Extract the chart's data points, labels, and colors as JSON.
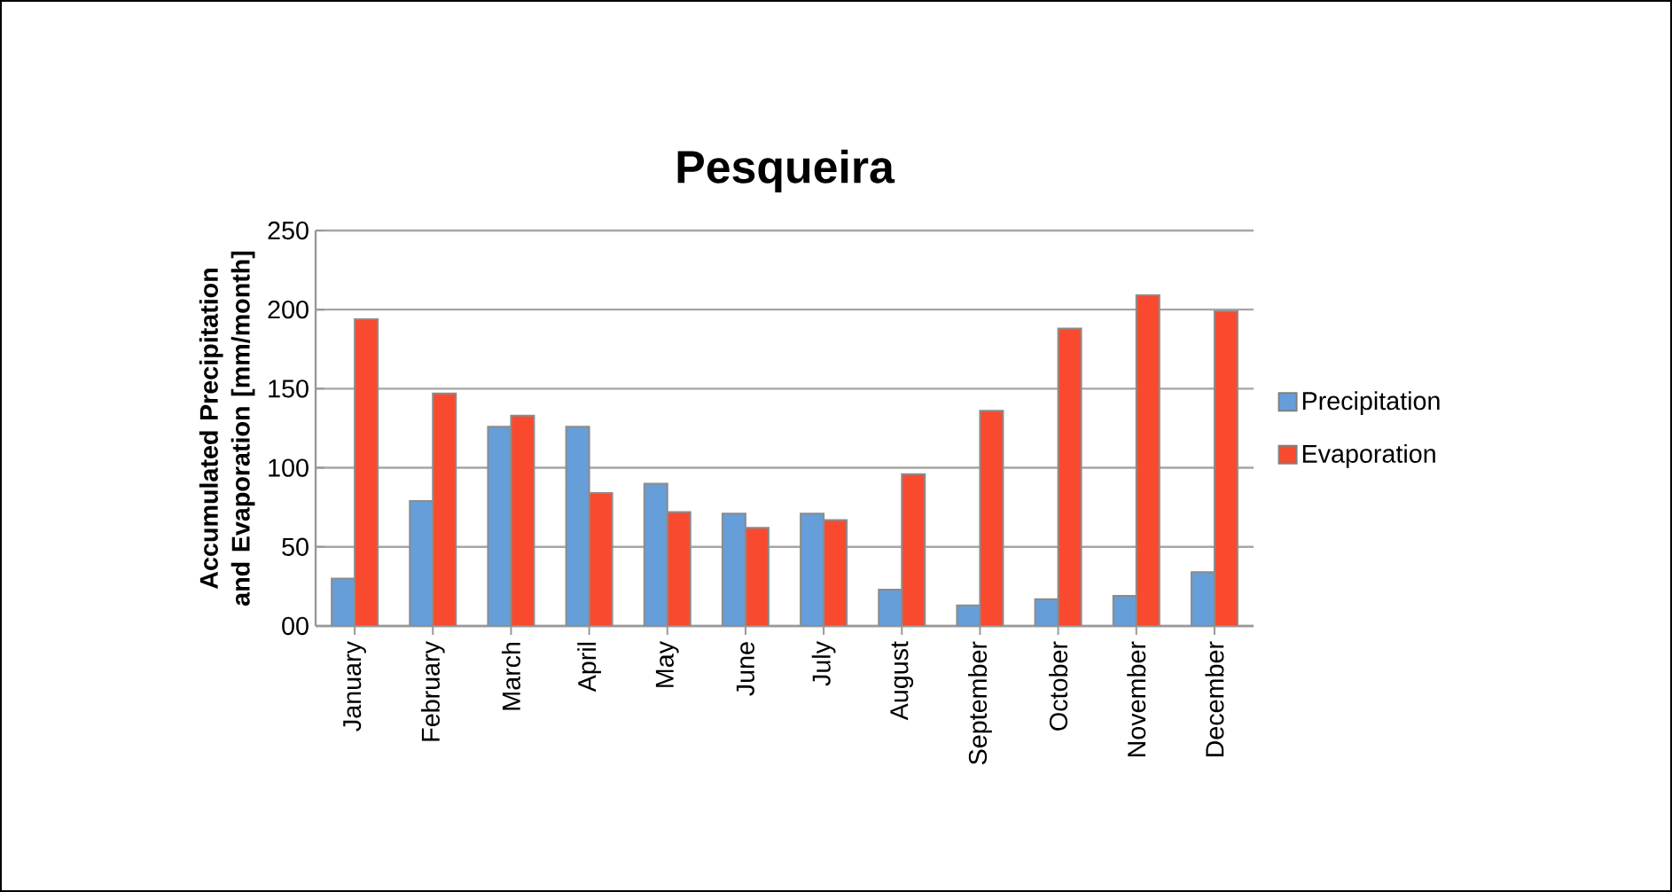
{
  "chart_data": {
    "type": "bar",
    "title": "Pesqueira",
    "ylabel": "Accumulated Precipitation and Evaporation [mm/month]",
    "categories": [
      "January",
      "February",
      "March",
      "April",
      "May",
      "June",
      "July",
      "August",
      "September",
      "October",
      "November",
      "December"
    ],
    "series": [
      {
        "name": "Precipitation",
        "color": "#659ed9",
        "values": [
          30,
          79,
          126,
          126,
          90,
          71,
          71,
          23,
          13,
          17,
          19,
          34
        ]
      },
      {
        "name": "Evaporation",
        "color": "#f94a2f",
        "values": [
          194,
          147,
          133,
          84,
          72,
          62,
          67,
          96,
          136,
          188,
          209,
          199
        ]
      }
    ],
    "ylim": [
      0,
      250
    ],
    "yticks": [
      {
        "value": 0,
        "label": "00"
      },
      50,
      100,
      150,
      200,
      250
    ],
    "grid": "y",
    "legend": "right"
  }
}
